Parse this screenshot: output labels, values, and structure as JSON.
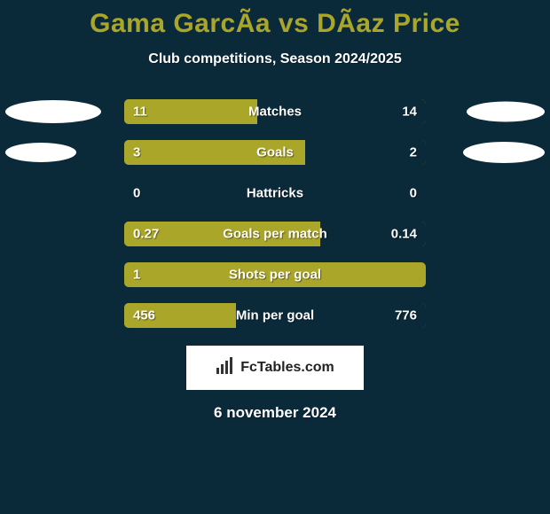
{
  "background_color": "#0a2a3a",
  "title": "Gama GarcÃ­a vs DÃ­az Price",
  "title_color": "#aaa62a",
  "subtitle": "Club competitions, Season 2024/2025",
  "subtitle_color": "#ffffff",
  "stat_label_color": "#ffffff",
  "value_color": "#ffffff",
  "bar_bg_color": "#aaa62a",
  "bar_fill_color": "#0a2a3a",
  "ellipse_color": "#ffffff",
  "logo_bg": "#ffffff",
  "logo_text_color": "#222222",
  "logo_text": "FcTables.com",
  "date": "6 november 2024",
  "date_color": "#ffffff",
  "rows": [
    {
      "label": "Matches",
      "left_val": "11",
      "right_val": "14",
      "left_pct": 44,
      "left_ellipse_w": 108,
      "left_ellipse_h": 26,
      "right_ellipse_w": 88,
      "right_ellipse_h": 23
    },
    {
      "label": "Goals",
      "left_val": "3",
      "right_val": "2",
      "left_pct": 60,
      "left_ellipse_w": 80,
      "left_ellipse_h": 22,
      "right_ellipse_w": 92,
      "right_ellipse_h": 24
    },
    {
      "label": "Hattricks",
      "left_val": "0",
      "right_val": "0",
      "left_pct": 0,
      "left_ellipse_w": 0,
      "left_ellipse_h": 0,
      "right_ellipse_w": 0,
      "right_ellipse_h": 0
    },
    {
      "label": "Goals per match",
      "left_val": "0.27",
      "right_val": "0.14",
      "left_pct": 65,
      "left_ellipse_w": 0,
      "left_ellipse_h": 0,
      "right_ellipse_w": 0,
      "right_ellipse_h": 0
    },
    {
      "label": "Shots per goal",
      "left_val": "1",
      "right_val": "",
      "left_pct": 100,
      "left_ellipse_w": 0,
      "left_ellipse_h": 0,
      "right_ellipse_w": 0,
      "right_ellipse_h": 0
    },
    {
      "label": "Min per goal",
      "left_val": "456",
      "right_val": "776",
      "left_pct": 37,
      "left_ellipse_w": 0,
      "left_ellipse_h": 0,
      "right_ellipse_w": 0,
      "right_ellipse_h": 0
    }
  ]
}
